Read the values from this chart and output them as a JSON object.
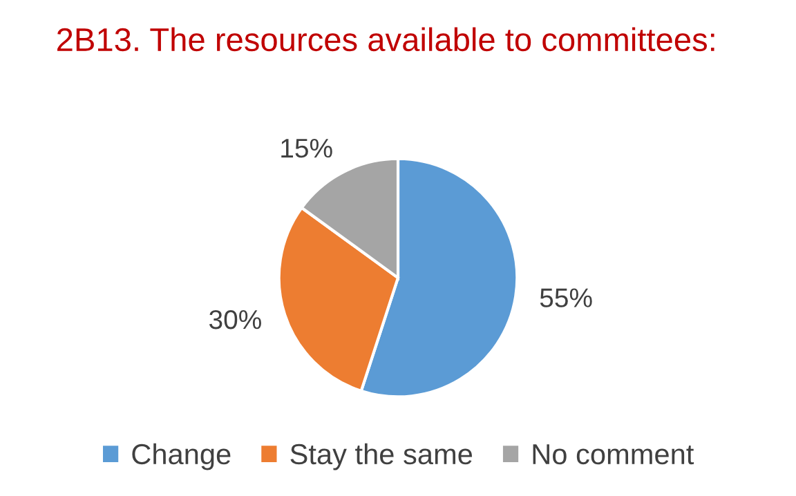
{
  "chart_data": {
    "type": "pie",
    "title": "2B13. The resources available to committees:",
    "categories": [
      "Change",
      "Stay the same",
      "No comment"
    ],
    "values": [
      55,
      30,
      15
    ],
    "colors": [
      "#5b9bd5",
      "#ed7d31",
      "#a5a5a5"
    ],
    "value_labels": [
      "55%",
      "30%",
      "15%"
    ],
    "legend": "bottom"
  }
}
